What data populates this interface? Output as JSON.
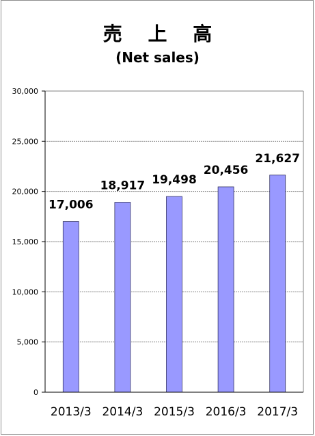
{
  "chart_data": {
    "type": "bar",
    "title": "売 上 高",
    "subtitle": "(Net sales)",
    "categories": [
      "2013/3",
      "2014/3",
      "2015/3",
      "2016/3",
      "2017/3"
    ],
    "values": [
      17006,
      18917,
      19498,
      20456,
      21627
    ],
    "data_labels": [
      "17,006",
      "18,917",
      "19,498",
      "20,456",
      "21,627"
    ],
    "y_ticks": [
      "0",
      "5,000",
      "10,000",
      "15,000",
      "20,000",
      "25,000",
      "30,000"
    ],
    "ylim": [
      0,
      30000
    ],
    "y_step": 5000,
    "grid": true,
    "bar_color": "#9999ff",
    "bar_border": "#333366",
    "grid_color": "#808080"
  }
}
